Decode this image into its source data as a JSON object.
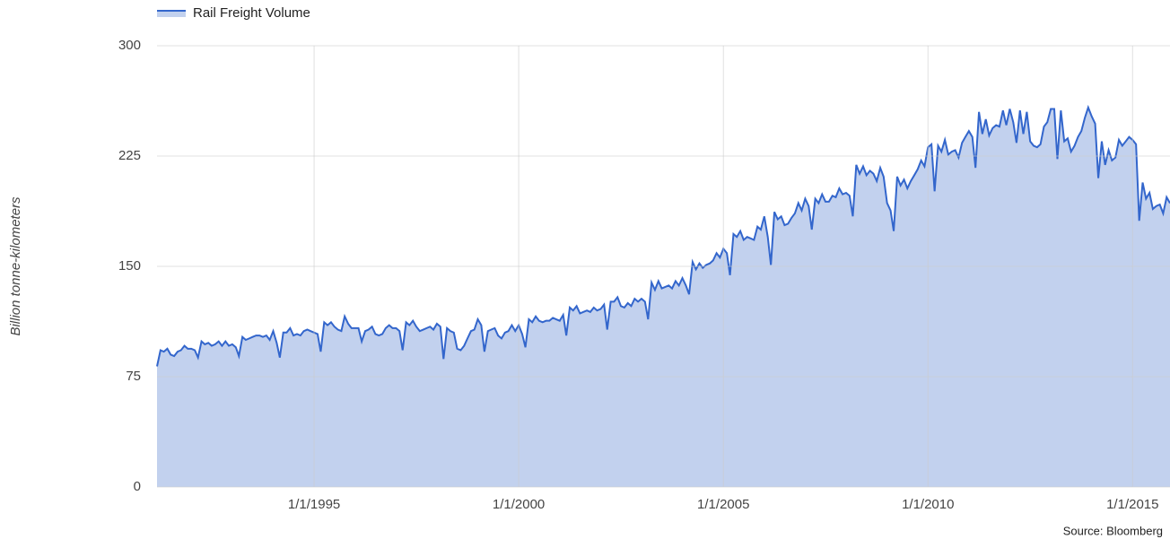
{
  "chart_data": {
    "type": "area",
    "y_label": "Billion tonne-kilometers",
    "source": "Source: Bloomberg",
    "legend": "top-left",
    "grid": true,
    "ylim": [
      0,
      300
    ],
    "yticks": [
      0,
      75,
      150,
      225,
      300
    ],
    "xlim": [
      "1991-03-01",
      "2015-12-01"
    ],
    "xticks": [
      {
        "value": "1995-01-01",
        "label": "1/1/1995"
      },
      {
        "value": "2000-01-01",
        "label": "1/1/2000"
      },
      {
        "value": "2005-01-01",
        "label": "1/1/2005"
      },
      {
        "value": "2010-01-01",
        "label": "1/1/2010"
      },
      {
        "value": "2015-01-01",
        "label": "1/1/2015"
      }
    ],
    "x": [
      "1991-03-01",
      "1991-04-01",
      "1991-05-01",
      "1991-06-01",
      "1991-07-01",
      "1991-08-01",
      "1991-09-01",
      "1991-10-01",
      "1991-11-01",
      "1991-12-01",
      "1992-01-01",
      "1992-02-01",
      "1992-03-01",
      "1992-04-01",
      "1992-05-01",
      "1992-06-01",
      "1992-07-01",
      "1992-08-01",
      "1992-09-01",
      "1992-10-01",
      "1992-11-01",
      "1992-12-01",
      "1993-01-01",
      "1993-02-01",
      "1993-03-01",
      "1993-04-01",
      "1993-05-01",
      "1993-06-01",
      "1993-07-01",
      "1993-08-01",
      "1993-09-01",
      "1993-10-01",
      "1993-11-01",
      "1993-12-01",
      "1994-01-01",
      "1994-02-01",
      "1994-03-01",
      "1994-04-01",
      "1994-05-01",
      "1994-06-01",
      "1994-07-01",
      "1994-08-01",
      "1994-09-01",
      "1994-10-01",
      "1994-11-01",
      "1994-12-01",
      "1995-01-01",
      "1995-02-01",
      "1995-03-01",
      "1995-04-01",
      "1995-05-01",
      "1995-06-01",
      "1995-07-01",
      "1995-08-01",
      "1995-09-01",
      "1995-10-01",
      "1995-11-01",
      "1995-12-01",
      "1996-01-01",
      "1996-02-01",
      "1996-03-01",
      "1996-04-01",
      "1996-05-01",
      "1996-06-01",
      "1996-07-01",
      "1996-08-01",
      "1996-09-01",
      "1996-10-01",
      "1996-11-01",
      "1996-12-01",
      "1997-01-01",
      "1997-02-01",
      "1997-03-01",
      "1997-04-01",
      "1997-05-01",
      "1997-06-01",
      "1997-07-01",
      "1997-08-01",
      "1997-09-01",
      "1997-10-01",
      "1997-11-01",
      "1997-12-01",
      "1998-01-01",
      "1998-02-01",
      "1998-03-01",
      "1998-04-01",
      "1998-05-01",
      "1998-06-01",
      "1998-07-01",
      "1998-08-01",
      "1998-09-01",
      "1998-10-01",
      "1998-11-01",
      "1998-12-01",
      "1999-01-01",
      "1999-02-01",
      "1999-03-01",
      "1999-04-01",
      "1999-05-01",
      "1999-06-01",
      "1999-07-01",
      "1999-08-01",
      "1999-09-01",
      "1999-10-01",
      "1999-11-01",
      "1999-12-01",
      "2000-01-01",
      "2000-02-01",
      "2000-03-01",
      "2000-04-01",
      "2000-05-01",
      "2000-06-01",
      "2000-07-01",
      "2000-08-01",
      "2000-09-01",
      "2000-10-01",
      "2000-11-01",
      "2000-12-01",
      "2001-01-01",
      "2001-02-01",
      "2001-03-01",
      "2001-04-01",
      "2001-05-01",
      "2001-06-01",
      "2001-07-01",
      "2001-08-01",
      "2001-09-01",
      "2001-10-01",
      "2001-11-01",
      "2001-12-01",
      "2002-01-01",
      "2002-02-01",
      "2002-03-01",
      "2002-04-01",
      "2002-05-01",
      "2002-06-01",
      "2002-07-01",
      "2002-08-01",
      "2002-09-01",
      "2002-10-01",
      "2002-11-01",
      "2002-12-01",
      "2003-01-01",
      "2003-02-01",
      "2003-03-01",
      "2003-04-01",
      "2003-05-01",
      "2003-06-01",
      "2003-07-01",
      "2003-08-01",
      "2003-09-01",
      "2003-10-01",
      "2003-11-01",
      "2003-12-01",
      "2004-01-01",
      "2004-02-01",
      "2004-03-01",
      "2004-04-01",
      "2004-05-01",
      "2004-06-01",
      "2004-07-01",
      "2004-08-01",
      "2004-09-01",
      "2004-10-01",
      "2004-11-01",
      "2004-12-01",
      "2005-01-01",
      "2005-02-01",
      "2005-03-01",
      "2005-04-01",
      "2005-05-01",
      "2005-06-01",
      "2005-07-01",
      "2005-08-01",
      "2005-09-01",
      "2005-10-01",
      "2005-11-01",
      "2005-12-01",
      "2006-01-01",
      "2006-02-01",
      "2006-03-01",
      "2006-04-01",
      "2006-05-01",
      "2006-06-01",
      "2006-07-01",
      "2006-08-01",
      "2006-09-01",
      "2006-10-01",
      "2006-11-01",
      "2006-12-01",
      "2007-01-01",
      "2007-02-01",
      "2007-03-01",
      "2007-04-01",
      "2007-05-01",
      "2007-06-01",
      "2007-07-01",
      "2007-08-01",
      "2007-09-01",
      "2007-10-01",
      "2007-11-01",
      "2007-12-01",
      "2008-01-01",
      "2008-02-01",
      "2008-03-01",
      "2008-04-01",
      "2008-05-01",
      "2008-06-01",
      "2008-07-01",
      "2008-08-01",
      "2008-09-01",
      "2008-10-01",
      "2008-11-01",
      "2008-12-01",
      "2009-01-01",
      "2009-02-01",
      "2009-03-01",
      "2009-04-01",
      "2009-05-01",
      "2009-06-01",
      "2009-07-01",
      "2009-08-01",
      "2009-09-01",
      "2009-10-01",
      "2009-11-01",
      "2009-12-01",
      "2010-01-01",
      "2010-02-01",
      "2010-03-01",
      "2010-04-01",
      "2010-05-01",
      "2010-06-01",
      "2010-07-01",
      "2010-08-01",
      "2010-09-01",
      "2010-10-01",
      "2010-11-01",
      "2010-12-01",
      "2011-01-01",
      "2011-02-01",
      "2011-03-01",
      "2011-04-01",
      "2011-05-01",
      "2011-06-01",
      "2011-07-01",
      "2011-08-01",
      "2011-09-01",
      "2011-10-01",
      "2011-11-01",
      "2011-12-01",
      "2012-01-01",
      "2012-02-01",
      "2012-03-01",
      "2012-04-01",
      "2012-05-01",
      "2012-06-01",
      "2012-07-01",
      "2012-08-01",
      "2012-09-01",
      "2012-10-01",
      "2012-11-01",
      "2012-12-01",
      "2013-01-01",
      "2013-02-01",
      "2013-03-01",
      "2013-04-01",
      "2013-05-01",
      "2013-06-01",
      "2013-07-01",
      "2013-08-01",
      "2013-09-01",
      "2013-10-01",
      "2013-11-01",
      "2013-12-01",
      "2014-01-01",
      "2014-02-01",
      "2014-03-01",
      "2014-04-01",
      "2014-05-01",
      "2014-06-01",
      "2014-07-01",
      "2014-08-01",
      "2014-09-01",
      "2014-10-01",
      "2014-11-01",
      "2014-12-01",
      "2015-01-01",
      "2015-02-01",
      "2015-03-01",
      "2015-04-01",
      "2015-05-01",
      "2015-06-01",
      "2015-07-01",
      "2015-08-01",
      "2015-09-01",
      "2015-10-01",
      "2015-11-01",
      "2015-12-01"
    ],
    "series": [
      {
        "name": "Rail Freight Volume",
        "color": "#3366cc",
        "fill": "#c2d1ee",
        "values": [
          82,
          93,
          92,
          94,
          90,
          89,
          92,
          93,
          96,
          94,
          94,
          93,
          88,
          99,
          97,
          98,
          96,
          97,
          99,
          96,
          99,
          96,
          97,
          95,
          89,
          102,
          100,
          101,
          102,
          103,
          103,
          102,
          103,
          100,
          106,
          98,
          88,
          105,
          105,
          108,
          103,
          104,
          103,
          106,
          107,
          106,
          105,
          104,
          92,
          112,
          110,
          112,
          109,
          107,
          106,
          116,
          111,
          108,
          108,
          108,
          99,
          106,
          107,
          109,
          104,
          103,
          104,
          108,
          110,
          108,
          108,
          106,
          93,
          112,
          110,
          113,
          109,
          106,
          107,
          108,
          109,
          107,
          111,
          109,
          87,
          108,
          106,
          105,
          94,
          93,
          96,
          101,
          106,
          107,
          114,
          110,
          92,
          106,
          107,
          108,
          103,
          101,
          105,
          106,
          110,
          106,
          110,
          104,
          95,
          114,
          112,
          116,
          113,
          112,
          113,
          113,
          115,
          114,
          113,
          117,
          103,
          122,
          120,
          123,
          118,
          119,
          120,
          119,
          122,
          120,
          121,
          124,
          107,
          126,
          126,
          129,
          123,
          122,
          125,
          123,
          128,
          126,
          128,
          126,
          114,
          139,
          134,
          140,
          135,
          136,
          137,
          135,
          140,
          137,
          142,
          137,
          131,
          153,
          148,
          152,
          149,
          151,
          152,
          154,
          159,
          156,
          162,
          159,
          144,
          172,
          170,
          174,
          168,
          170,
          169,
          168,
          177,
          175,
          184,
          170,
          151,
          187,
          182,
          184,
          178,
          179,
          183,
          186,
          193,
          188,
          196,
          191,
          175,
          196,
          193,
          199,
          194,
          194,
          198,
          197,
          203,
          199,
          200,
          198,
          184,
          219,
          213,
          218,
          212,
          215,
          213,
          208,
          217,
          211,
          193,
          188,
          174,
          211,
          205,
          209,
          203,
          208,
          212,
          216,
          222,
          218,
          231,
          233,
          201,
          232,
          228,
          236,
          226,
          228,
          229,
          224,
          234,
          238,
          242,
          238,
          217,
          255,
          240,
          250,
          239,
          244,
          246,
          245,
          256,
          246,
          257,
          248,
          234,
          256,
          240,
          255,
          235,
          232,
          231,
          233,
          245,
          248,
          257,
          257,
          223,
          256,
          235,
          237,
          228,
          232,
          238,
          242,
          251,
          258,
          252,
          247,
          210,
          235,
          219,
          229,
          222,
          224,
          236,
          232,
          235,
          238,
          236,
          233,
          181,
          207,
          196,
          200,
          189,
          191,
          192,
          186,
          197,
          193
        ]
      }
    ]
  }
}
